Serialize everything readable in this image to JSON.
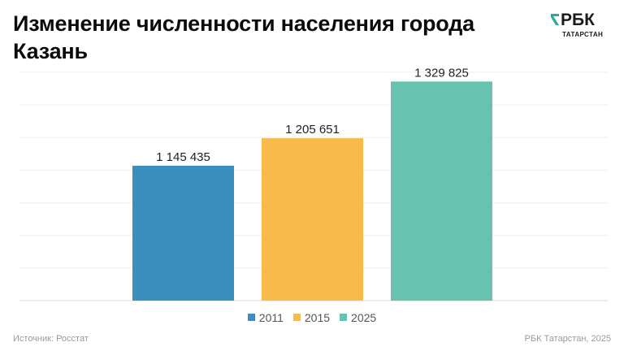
{
  "chart_data": {
    "type": "bar",
    "title": "Изменение численности населения города Казань",
    "categories": [
      "2011",
      "2015",
      "2025"
    ],
    "values": [
      1145435,
      1205651,
      1329825
    ],
    "value_labels": [
      "1 145 435",
      "1 205 651",
      "1 329 825"
    ],
    "colors": [
      "#3a8fbd",
      "#f7ba4b",
      "#67c2b0"
    ],
    "ylim": [
      850000,
      1350000
    ],
    "grid": true,
    "legend": "bottom-center",
    "xlabel": "",
    "ylabel": ""
  },
  "brand": {
    "name": "РБК",
    "sub": "ТАТАРСТАН"
  },
  "footer": {
    "source": "Источник: Росстат",
    "credit": "РБК Татарстан, 2025"
  }
}
